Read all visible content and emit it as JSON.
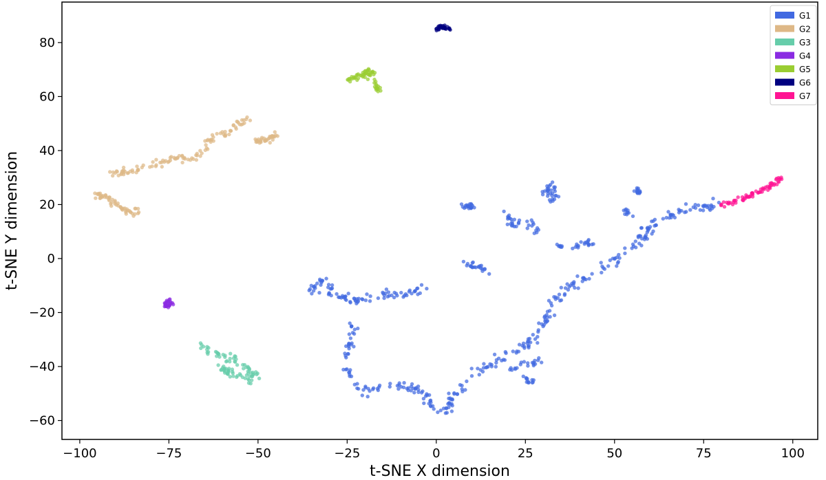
{
  "chart_data": {
    "type": "scatter",
    "title": "",
    "xlabel": "t-SNE X dimension",
    "ylabel": "t-SNE Y dimension",
    "xlim": [
      -105,
      107
    ],
    "ylim": [
      -67,
      95
    ],
    "xticks": [
      -100,
      -75,
      -50,
      -25,
      0,
      25,
      50,
      75,
      100
    ],
    "yticks": [
      -60,
      -40,
      -20,
      0,
      20,
      40,
      60,
      80
    ],
    "xtick_labels": [
      "−100",
      "−75",
      "−50",
      "−25",
      "0",
      "25",
      "50",
      "75",
      "100"
    ],
    "ytick_labels": [
      "−60",
      "−40",
      "−20",
      "0",
      "20",
      "40",
      "60",
      "80"
    ],
    "grid": false,
    "legend_position": "top-right",
    "series": [
      {
        "name": "G1",
        "color": "#4169e1",
        "clusters": [
          {
            "path": [
              [
                -35,
                -12
              ],
              [
                -32,
                -8
              ],
              [
                -28,
                -14
              ],
              [
                -22,
                -16
              ],
              [
                -17,
                -14
              ],
              [
                -12,
                -13
              ],
              [
                -6,
                -13
              ],
              [
                -3,
                -10
              ]
            ],
            "spread": 1.3,
            "n": 90
          },
          {
            "path": [
              [
                -23,
                -24
              ],
              [
                -24,
                -32
              ],
              [
                -26,
                -38
              ],
              [
                -23,
                -45
              ],
              [
                -20,
                -50
              ],
              [
                -17,
                -48
              ],
              [
                -12,
                -47
              ],
              [
                -6,
                -48
              ],
              [
                -2,
                -52
              ],
              [
                0,
                -57
              ],
              [
                3,
                -56
              ],
              [
                5,
                -50
              ]
            ],
            "spread": 1.3,
            "n": 110
          },
          {
            "path": [
              [
                5,
                -50
              ],
              [
                8,
                -46
              ],
              [
                11,
                -42
              ],
              [
                16,
                -38
              ],
              [
                20,
                -35
              ],
              [
                25,
                -32
              ],
              [
                29,
                -27
              ],
              [
                32,
                -20
              ],
              [
                34,
                -14
              ],
              [
                40,
                -8
              ],
              [
                45,
                -5
              ],
              [
                50,
                -1
              ],
              [
                54,
                3
              ],
              [
                58,
                9
              ],
              [
                62,
                14
              ],
              [
                66,
                16
              ],
              [
                70,
                18
              ],
              [
                75,
                19
              ],
              [
                79,
                20
              ]
            ],
            "spread": 1.5,
            "n": 200
          },
          {
            "path": [
              [
                7,
                20
              ],
              [
                11,
                19
              ]
            ],
            "spread": 1.0,
            "n": 20
          },
          {
            "path": [
              [
                19,
                17
              ],
              [
                22,
                12
              ],
              [
                26,
                14
              ],
              [
                28,
                10
              ]
            ],
            "spread": 1.2,
            "n": 32
          },
          {
            "path": [
              [
                30,
                24
              ],
              [
                33,
                28
              ],
              [
                33,
                21
              ]
            ],
            "spread": 1.2,
            "n": 30
          },
          {
            "path": [
              [
                8,
                -1
              ],
              [
                11,
                -3
              ],
              [
                14,
                -5
              ]
            ],
            "spread": 1.0,
            "n": 22
          },
          {
            "path": [
              [
                33,
                5
              ],
              [
                38,
                4
              ],
              [
                42,
                6
              ],
              [
                45,
                5
              ]
            ],
            "spread": 1.0,
            "n": 25
          },
          {
            "path": [
              [
                56,
                26
              ],
              [
                57,
                24
              ]
            ],
            "spread": 0.8,
            "n": 14
          },
          {
            "path": [
              [
                53,
                18
              ],
              [
                55,
                16
              ]
            ],
            "spread": 0.8,
            "n": 10
          },
          {
            "path": [
              [
                21,
                -41
              ],
              [
                26,
                -39
              ],
              [
                29,
                -38
              ]
            ],
            "spread": 1.0,
            "n": 20
          },
          {
            "path": [
              [
                25,
                -44
              ],
              [
                27,
                -46
              ]
            ],
            "spread": 0.8,
            "n": 12
          }
        ]
      },
      {
        "name": "G2",
        "color": "#deb887",
        "clusters": [
          {
            "path": [
              [
                -91,
                31
              ],
              [
                -85,
                33
              ],
              [
                -79,
                35
              ],
              [
                -73,
                37
              ],
              [
                -68,
                37
              ],
              [
                -65,
                40
              ],
              [
                -63,
                45
              ],
              [
                -60,
                46
              ],
              [
                -57,
                48
              ],
              [
                -55,
                50
              ],
              [
                -53,
                52
              ]
            ],
            "spread": 1.2,
            "n": 110
          },
          {
            "path": [
              [
                -51,
                43
              ],
              [
                -48,
                44
              ],
              [
                -45,
                46
              ]
            ],
            "spread": 1.0,
            "n": 35
          },
          {
            "path": [
              [
                -95,
                24
              ],
              [
                -92,
                22
              ],
              [
                -89,
                19
              ],
              [
                -86,
                17
              ],
              [
                -83,
                18
              ]
            ],
            "spread": 1.3,
            "n": 55
          }
        ]
      },
      {
        "name": "G3",
        "color": "#66cdaa",
        "clusters": [
          {
            "path": [
              [
                -66,
                -32
              ],
              [
                -62,
                -35
              ],
              [
                -57,
                -37
              ],
              [
                -54,
                -40
              ],
              [
                -51,
                -42
              ],
              [
                -52,
                -45
              ],
              [
                -56,
                -43
              ],
              [
                -61,
                -40
              ]
            ],
            "spread": 1.3,
            "n": 90
          }
        ]
      },
      {
        "name": "G4",
        "color": "#8a2be2",
        "clusters": [
          {
            "path": [
              [
                -75,
                -15
              ],
              [
                -76,
                -18
              ],
              [
                -74,
                -17
              ]
            ],
            "spread": 0.6,
            "n": 28
          }
        ]
      },
      {
        "name": "G5",
        "color": "#9acd32",
        "clusters": [
          {
            "path": [
              [
                -25,
                66
              ],
              [
                -21,
                68
              ],
              [
                -18,
                69
              ],
              [
                -17,
                64
              ],
              [
                -16,
                62
              ]
            ],
            "spread": 1.0,
            "n": 60
          }
        ]
      },
      {
        "name": "G6",
        "color": "#000080",
        "clusters": [
          {
            "path": [
              [
                0,
                85
              ],
              [
                2,
                86
              ],
              [
                4,
                85
              ]
            ],
            "spread": 0.6,
            "n": 28
          }
        ]
      },
      {
        "name": "G7",
        "color": "#ff1493",
        "clusters": [
          {
            "path": [
              [
                79,
                20
              ],
              [
                83,
                21
              ],
              [
                86,
                22
              ],
              [
                89,
                24
              ],
              [
                92,
                26
              ],
              [
                95,
                28
              ],
              [
                97,
                30
              ]
            ],
            "spread": 0.9,
            "n": 70
          }
        ]
      }
    ]
  }
}
